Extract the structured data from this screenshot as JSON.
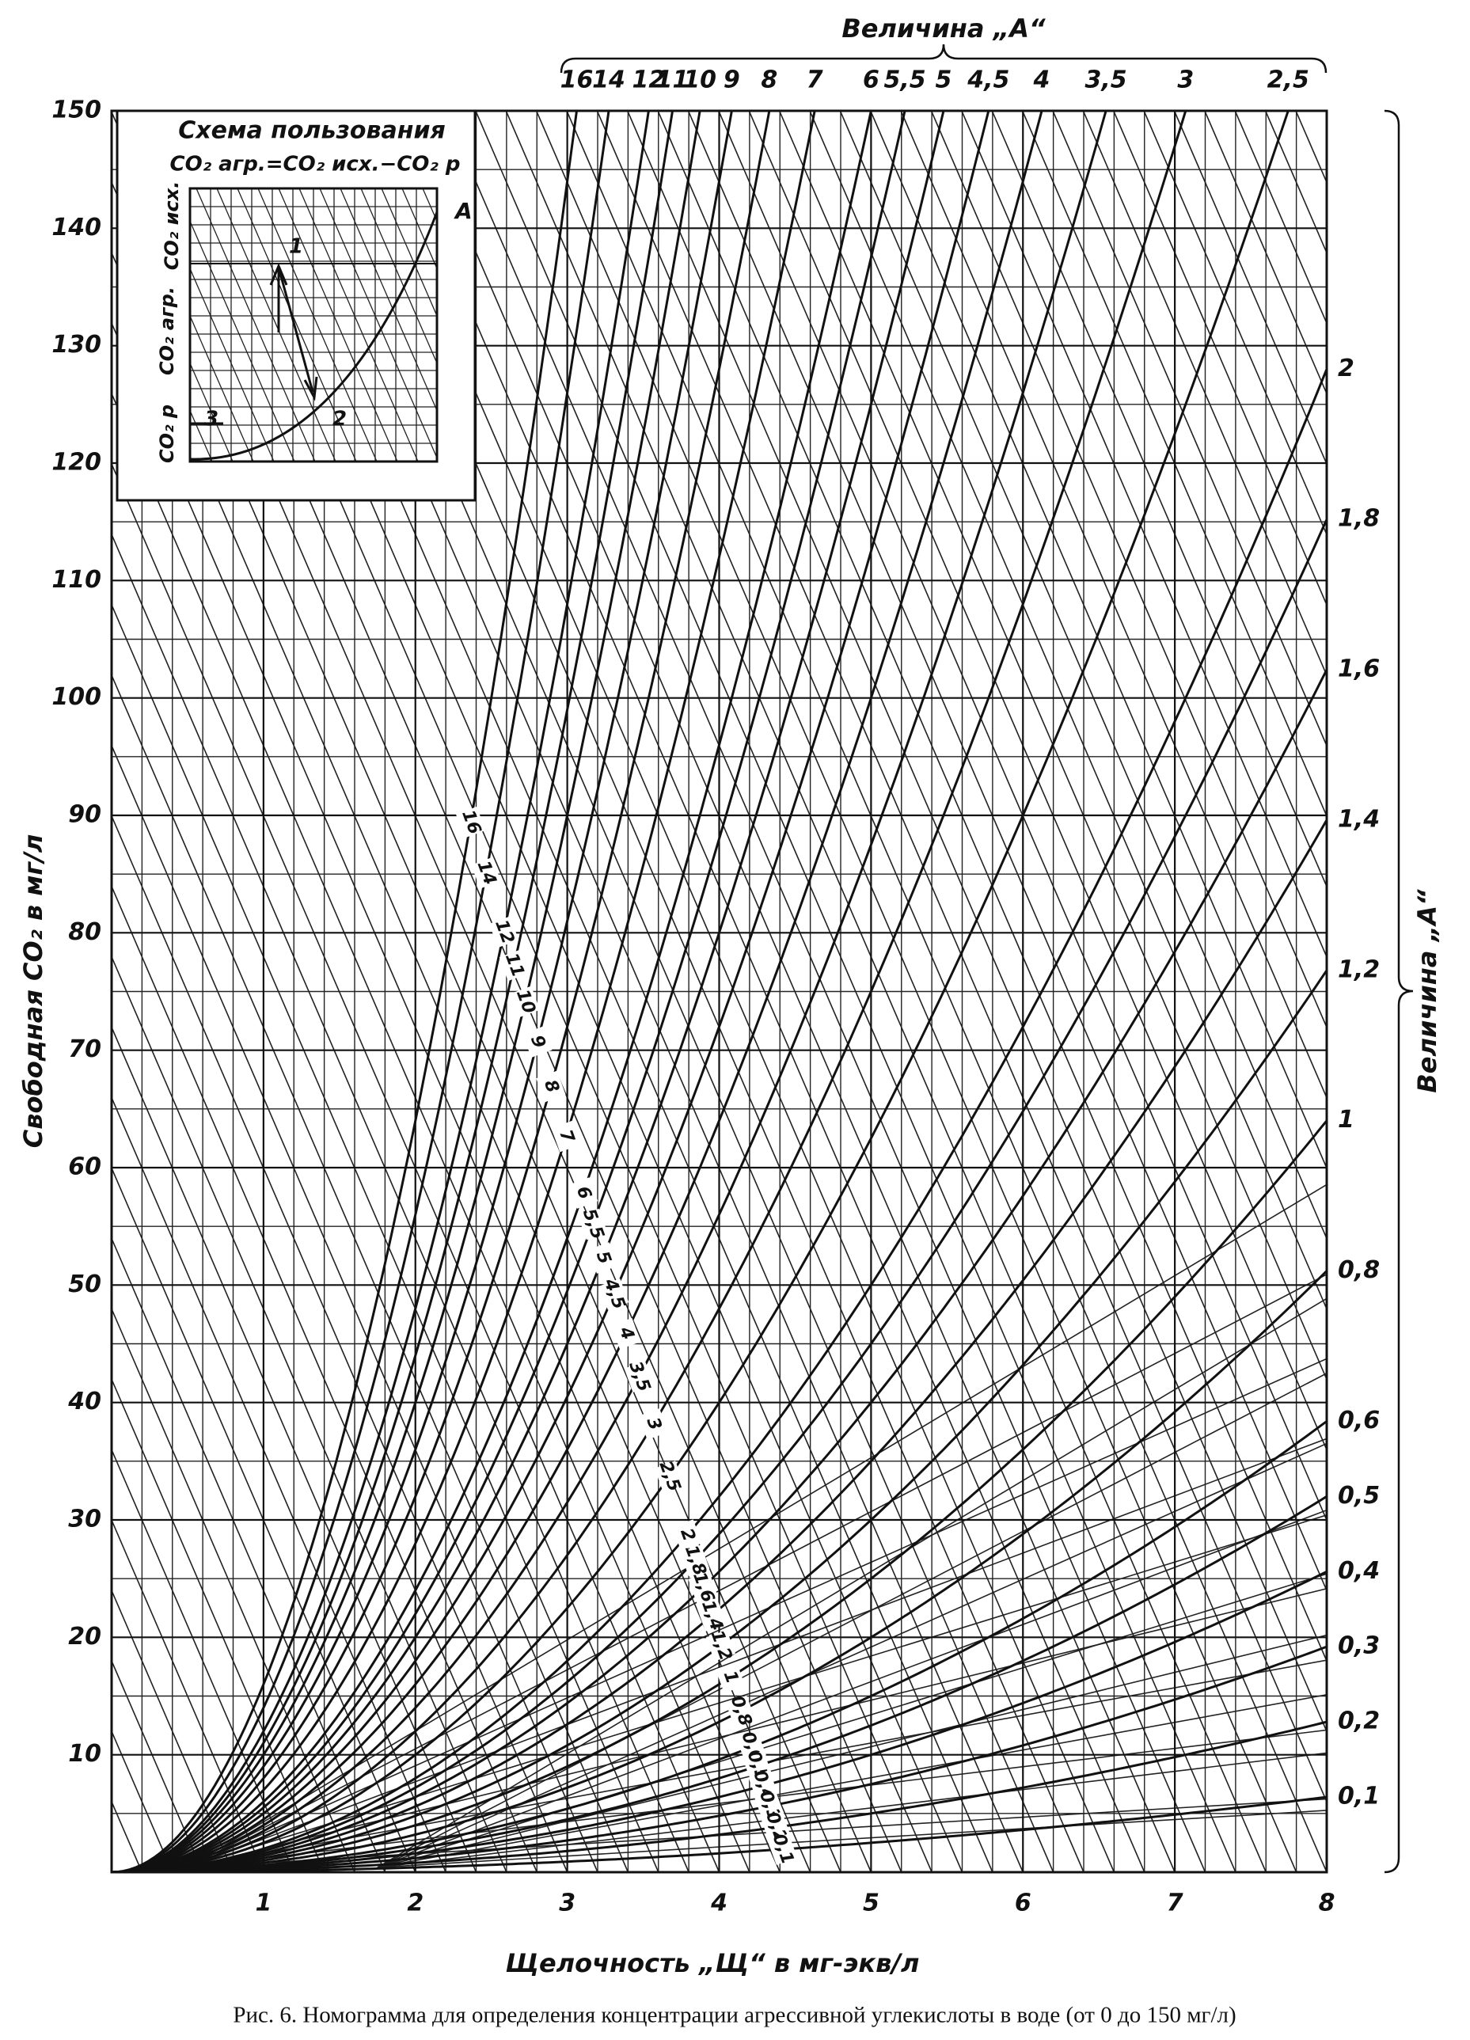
{
  "chart_data": {
    "type": "nomogram",
    "top_title": "Величина „А“",
    "right_title": "Величина „А“",
    "y_label": "Свободная CO₂ в мг/л",
    "x_label": "Щелочность „Щ“ в мг-экв/л",
    "caption": "Рис. 6. Номограмма для определения концентрации агрессивной углекислоты в воде (от 0 до 150 мг/л)",
    "xlim": [
      0,
      8
    ],
    "xticks": [
      1,
      2,
      3,
      4,
      5,
      6,
      7,
      8
    ],
    "ylim": [
      0,
      150
    ],
    "yticks": [
      10,
      20,
      30,
      40,
      50,
      60,
      70,
      80,
      90,
      100,
      110,
      120,
      130,
      140,
      150
    ],
    "grid": true,
    "color": "#111111",
    "a_values": [
      16,
      14,
      12,
      11,
      10,
      9,
      8,
      7,
      6,
      {
        "value": 5.5,
        "label": "5,5"
      },
      5,
      {
        "value": 4.5,
        "label": "4,5"
      },
      4,
      {
        "value": 3.5,
        "label": "3,5"
      },
      3,
      {
        "value": 2.5,
        "label": "2,5"
      },
      2,
      {
        "value": 1.8,
        "label": "1,8"
      },
      {
        "value": 1.6,
        "label": "1,6"
      },
      {
        "value": 1.4,
        "label": "1,4"
      },
      {
        "value": 1.2,
        "label": "1,2"
      },
      1,
      {
        "value": 0.8,
        "label": "0,8"
      },
      {
        "value": 0.6,
        "label": "0,6"
      },
      {
        "value": 0.5,
        "label": "0,5"
      },
      {
        "value": 0.4,
        "label": "0,4"
      },
      {
        "value": 0.3,
        "label": "0,3"
      },
      {
        "value": 0.2,
        "label": "0,2"
      },
      {
        "value": 0.1,
        "label": "0,1"
      }
    ],
    "inset": {
      "title": "Схема пользования",
      "formula": "CO₂ агр.=CO₂ исх.−CO₂ р",
      "axis_initial": "CO₂ исх.",
      "axis_aggressive": "CO₂ агр.",
      "axis_equilibrium": "CO₂ р",
      "curve_label": "А",
      "point_1": "1",
      "point_2": "2",
      "point_3": "3"
    }
  }
}
